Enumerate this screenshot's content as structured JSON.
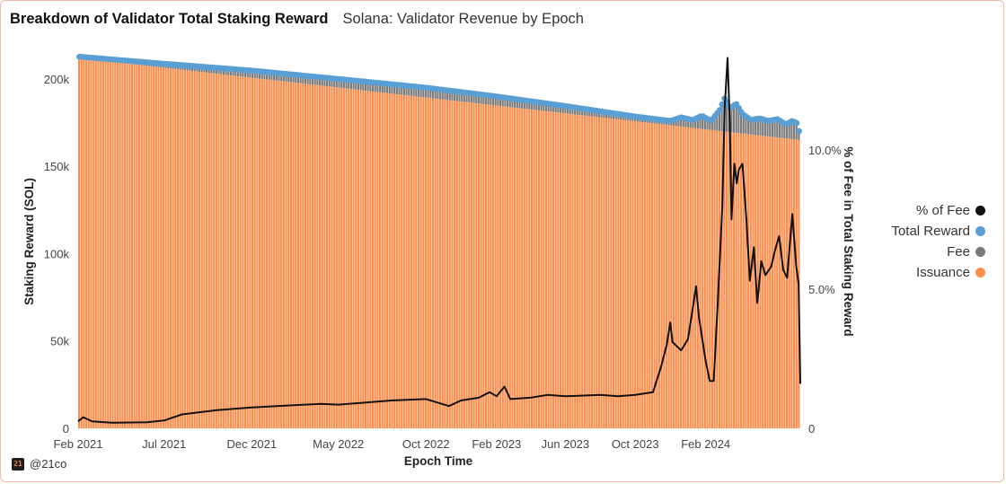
{
  "header": {
    "title": "Breakdown of Validator Total Staking Reward",
    "subtitle": "Solana: Validator Revenue by Epoch"
  },
  "legend": {
    "items": [
      {
        "label": "% of Fee",
        "color": "#111111"
      },
      {
        "label": "Total Reward",
        "color": "#5a9fd4"
      },
      {
        "label": "Fee",
        "color": "#7a7a7a"
      },
      {
        "label": "Issuance",
        "color": "#ff8c4a"
      }
    ]
  },
  "brand": {
    "logo_text": "21",
    "handle": "@21co"
  },
  "chart_data": {
    "type": "bar",
    "xlabel": "Epoch Time",
    "ylabel": "Staking Reward (SOL)",
    "y2label": "% of Fee in Total Staking Reward",
    "x_range": [
      "2021-02-01",
      "2024-07-15"
    ],
    "x_ticks": [
      "Feb 2021",
      "Jul 2021",
      "Dec 2021",
      "May 2022",
      "Oct 2022",
      "Feb 2023",
      "Jun 2023",
      "Oct 2023",
      "Feb 2024"
    ],
    "ylim": [
      0,
      220000
    ],
    "y_ticks": [
      {
        "value": 0,
        "label": "0"
      },
      {
        "value": 50000,
        "label": "50k"
      },
      {
        "value": 100000,
        "label": "100k"
      },
      {
        "value": 150000,
        "label": "150k"
      },
      {
        "value": 200000,
        "label": "200k"
      }
    ],
    "y2lim": [
      0,
      13.8
    ],
    "y2_ticks": [
      {
        "value": 0,
        "label": "0"
      },
      {
        "value": 5,
        "label": "5.0%"
      },
      {
        "value": 10,
        "label": "10.0%"
      }
    ],
    "colors": {
      "issuance": "#ff8c4a",
      "fee": "#7a7a7a",
      "total": "#5a9fd4",
      "pct": "#111111"
    },
    "issuance_series": {
      "name": "Issuance",
      "points": [
        [
          "2021-02-01",
          212000
        ],
        [
          "2024-07-15",
          165000
        ]
      ]
    },
    "total_reward_series": {
      "name": "Total Reward",
      "points": [
        [
          "2021-02-01",
          212800
        ],
        [
          "2021-07-01",
          208700
        ],
        [
          "2021-12-01",
          204800
        ],
        [
          "2022-05-01",
          200000
        ],
        [
          "2022-10-01",
          195000
        ],
        [
          "2023-02-01",
          190000
        ],
        [
          "2023-06-01",
          184500
        ],
        [
          "2023-10-01",
          178500
        ],
        [
          "2023-12-01",
          176000
        ],
        [
          "2023-12-20",
          178000
        ],
        [
          "2024-01-10",
          176500
        ],
        [
          "2024-01-25",
          179000
        ],
        [
          "2024-02-10",
          176000
        ],
        [
          "2024-02-25",
          182000
        ],
        [
          "2024-03-05",
          189000
        ],
        [
          "2024-03-15",
          183000
        ],
        [
          "2024-03-25",
          186000
        ],
        [
          "2024-04-05",
          180000
        ],
        [
          "2024-04-20",
          176500
        ],
        [
          "2024-05-05",
          177500
        ],
        [
          "2024-05-20",
          176000
        ],
        [
          "2024-06-05",
          177000
        ],
        [
          "2024-06-20",
          174000
        ],
        [
          "2024-07-01",
          176000
        ],
        [
          "2024-07-10",
          174500
        ],
        [
          "2024-07-15",
          167000
        ]
      ]
    },
    "pct_fee_series": {
      "name": "% of Fee",
      "points": [
        [
          "2021-02-01",
          0.25
        ],
        [
          "2021-02-10",
          0.4
        ],
        [
          "2021-02-25",
          0.25
        ],
        [
          "2021-04-01",
          0.2
        ],
        [
          "2021-06-01",
          0.22
        ],
        [
          "2021-07-01",
          0.28
        ],
        [
          "2021-08-01",
          0.5
        ],
        [
          "2021-10-01",
          0.65
        ],
        [
          "2021-12-01",
          0.75
        ],
        [
          "2022-02-01",
          0.82
        ],
        [
          "2022-04-01",
          0.88
        ],
        [
          "2022-05-01",
          0.85
        ],
        [
          "2022-06-01",
          0.9
        ],
        [
          "2022-08-01",
          1.0
        ],
        [
          "2022-10-01",
          1.05
        ],
        [
          "2022-11-10",
          0.8
        ],
        [
          "2022-12-01",
          1.0
        ],
        [
          "2023-01-01",
          1.1
        ],
        [
          "2023-01-20",
          1.3
        ],
        [
          "2023-02-01",
          1.15
        ],
        [
          "2023-02-15",
          1.5
        ],
        [
          "2023-02-25",
          1.05
        ],
        [
          "2023-04-01",
          1.1
        ],
        [
          "2023-05-01",
          1.2
        ],
        [
          "2023-06-01",
          1.15
        ],
        [
          "2023-08-01",
          1.2
        ],
        [
          "2023-09-01",
          1.15
        ],
        [
          "2023-10-01",
          1.2
        ],
        [
          "2023-11-01",
          1.3
        ],
        [
          "2023-11-15",
          2.2
        ],
        [
          "2023-11-25",
          3.0
        ],
        [
          "2023-12-01",
          3.8
        ],
        [
          "2023-12-05",
          3.1
        ],
        [
          "2023-12-20",
          2.8
        ],
        [
          "2024-01-01",
          3.2
        ],
        [
          "2024-01-10",
          4.4
        ],
        [
          "2024-01-15",
          5.1
        ],
        [
          "2024-01-20",
          4.0
        ],
        [
          "2024-02-01",
          2.4
        ],
        [
          "2024-02-08",
          1.7
        ],
        [
          "2024-02-15",
          1.7
        ],
        [
          "2024-02-22",
          4.5
        ],
        [
          "2024-03-01",
          8.0
        ],
        [
          "2024-03-05",
          11.5
        ],
        [
          "2024-03-10",
          13.3
        ],
        [
          "2024-03-14",
          11.0
        ],
        [
          "2024-03-17",
          7.5
        ],
        [
          "2024-03-22",
          9.5
        ],
        [
          "2024-03-26",
          8.8
        ],
        [
          "2024-03-30",
          9.3
        ],
        [
          "2024-04-05",
          9.5
        ],
        [
          "2024-04-12",
          7.5
        ],
        [
          "2024-04-18",
          5.3
        ],
        [
          "2024-04-25",
          6.5
        ],
        [
          "2024-05-01",
          4.5
        ],
        [
          "2024-05-08",
          6.0
        ],
        [
          "2024-05-15",
          5.5
        ],
        [
          "2024-05-25",
          5.8
        ],
        [
          "2024-06-01",
          6.4
        ],
        [
          "2024-06-08",
          6.9
        ],
        [
          "2024-06-15",
          5.7
        ],
        [
          "2024-06-22",
          5.4
        ],
        [
          "2024-07-01",
          7.7
        ],
        [
          "2024-07-08",
          5.8
        ],
        [
          "2024-07-12",
          5.2
        ],
        [
          "2024-07-15",
          1.6
        ]
      ]
    }
  }
}
